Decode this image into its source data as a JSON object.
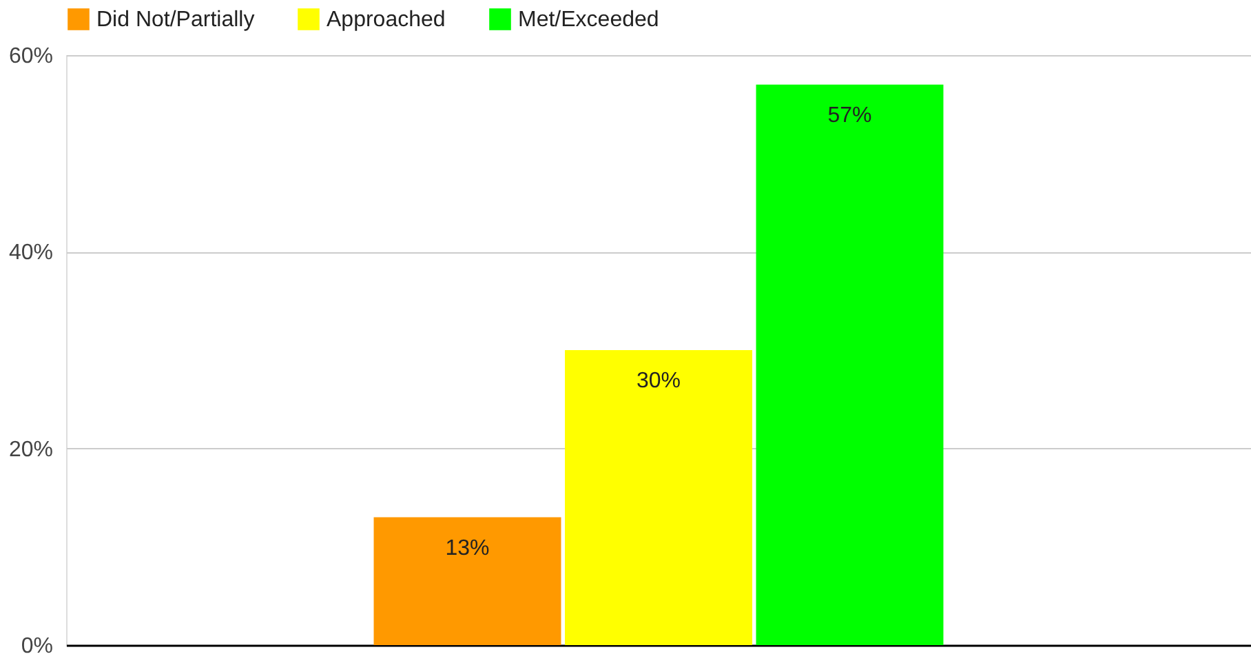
{
  "chart_data": {
    "type": "bar",
    "categories": [
      null
    ],
    "series": [
      {
        "name": "Did Not/Partially",
        "color": "#ff9900",
        "values": [
          13
        ],
        "value_labels": [
          "13%"
        ]
      },
      {
        "name": "Approached",
        "color": "#ffff00",
        "values": [
          30
        ],
        "value_labels": [
          "30%"
        ]
      },
      {
        "name": "Met/Exceeded",
        "color": "#00ff00",
        "values": [
          57
        ],
        "value_labels": [
          "57%"
        ]
      }
    ],
    "ylim": [
      0,
      60
    ],
    "yticks": [
      {
        "value": 0,
        "label": "0%"
      },
      {
        "value": 20,
        "label": "20%"
      },
      {
        "value": 40,
        "label": "40%"
      },
      {
        "value": 60,
        "label": "60%"
      }
    ],
    "grid": "y",
    "legend": "top"
  }
}
